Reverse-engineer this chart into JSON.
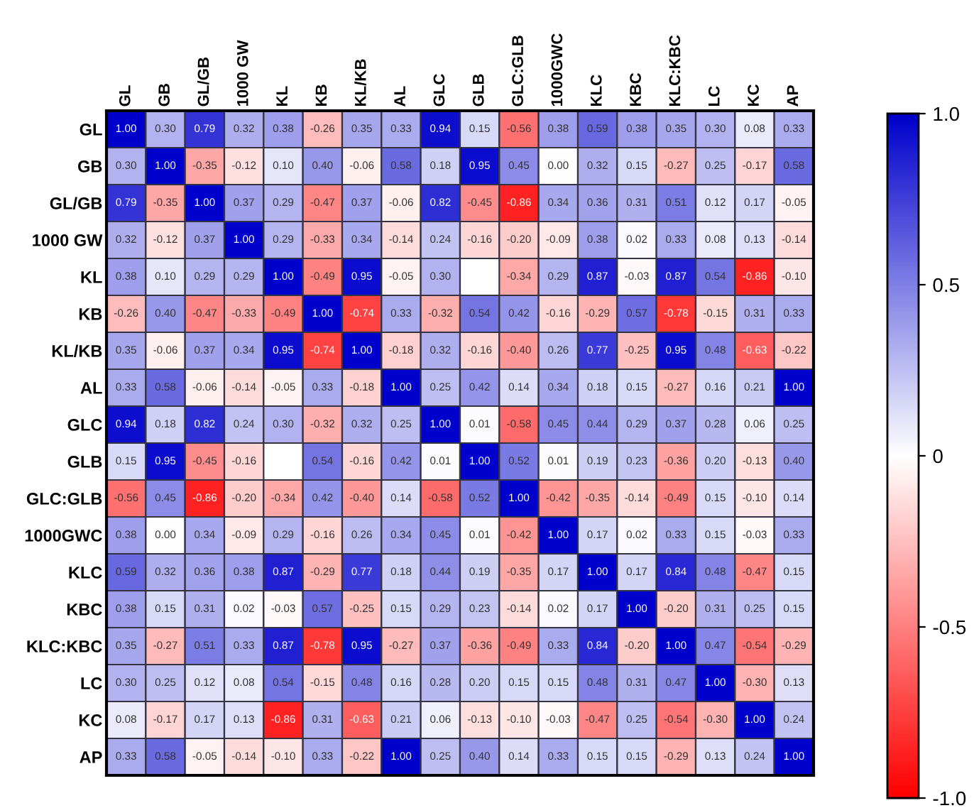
{
  "chart_data": {
    "type": "heatmap",
    "categories": [
      "GL",
      "GB",
      "GL/GB",
      "1000 GW",
      "KL",
      "KB",
      "KL/KB",
      "AL",
      "GLC",
      "GLB",
      "GLC:GLB",
      "1000GWC",
      "KLC",
      "KBC",
      "KLC:KBC",
      "LC",
      "KC",
      "AP"
    ],
    "y_categories": [
      "GL",
      "GB",
      "GL/GB",
      "1000 GW",
      "KL",
      "KB",
      "KL/KB",
      "AL",
      "GLC",
      "GLB",
      "GLC:GLB",
      "1000GWC",
      "KLC",
      "KBC",
      "KLC:KBC",
      "LC",
      "KC",
      "AP"
    ],
    "cells": [
      [
        1.0,
        0.3,
        0.79,
        0.32,
        0.38,
        -0.26,
        0.35,
        0.33,
        0.94,
        0.15,
        -0.56,
        0.38,
        0.59,
        0.38,
        0.35,
        0.3,
        0.08,
        0.33
      ],
      [
        0.3,
        1.0,
        -0.35,
        -0.12,
        0.1,
        0.4,
        -0.06,
        0.58,
        0.18,
        0.95,
        0.45,
        0.0,
        0.32,
        0.15,
        -0.27,
        0.25,
        -0.17,
        0.58
      ],
      [
        0.79,
        -0.35,
        1.0,
        0.37,
        0.29,
        -0.47,
        0.37,
        -0.06,
        0.82,
        -0.45,
        -0.86,
        0.34,
        0.36,
        0.31,
        0.51,
        0.12,
        0.17,
        -0.05
      ],
      [
        0.32,
        -0.12,
        0.37,
        1.0,
        0.29,
        -0.33,
        0.34,
        -0.14,
        0.24,
        -0.16,
        -0.2,
        -0.09,
        0.38,
        0.02,
        0.33,
        0.08,
        0.13,
        -0.14
      ],
      [
        0.38,
        0.1,
        0.29,
        0.29,
        1.0,
        -0.49,
        0.95,
        -0.05,
        0.3,
        null,
        -0.34,
        0.29,
        0.87,
        -0.03,
        0.87,
        0.54,
        -0.86,
        -0.1
      ],
      [
        -0.26,
        0.4,
        -0.47,
        -0.33,
        -0.49,
        1.0,
        -0.74,
        0.33,
        -0.32,
        0.54,
        0.42,
        -0.16,
        -0.29,
        0.57,
        -0.78,
        -0.15,
        0.31,
        0.33
      ],
      [
        0.35,
        -0.06,
        0.37,
        0.34,
        0.95,
        -0.74,
        1.0,
        -0.18,
        0.32,
        -0.16,
        -0.4,
        0.26,
        0.77,
        -0.25,
        0.95,
        0.48,
        -0.63,
        -0.22
      ],
      [
        0.33,
        0.58,
        -0.06,
        -0.14,
        -0.05,
        0.33,
        -0.18,
        1.0,
        0.25,
        0.42,
        0.14,
        0.34,
        0.18,
        0.15,
        -0.27,
        0.16,
        0.21,
        1.0
      ],
      [
        0.94,
        0.18,
        0.82,
        0.24,
        0.3,
        -0.32,
        0.32,
        0.25,
        1.0,
        0.01,
        -0.58,
        0.45,
        0.44,
        0.29,
        0.37,
        0.28,
        0.06,
        0.25
      ],
      [
        0.15,
        0.95,
        -0.45,
        -0.16,
        null,
        0.54,
        -0.16,
        0.42,
        0.01,
        1.0,
        0.52,
        0.01,
        0.19,
        0.23,
        -0.36,
        0.2,
        -0.13,
        0.4
      ],
      [
        -0.56,
        0.45,
        -0.86,
        -0.2,
        -0.34,
        0.42,
        -0.4,
        0.14,
        -0.58,
        0.52,
        1.0,
        -0.42,
        -0.35,
        -0.14,
        -0.49,
        0.15,
        -0.1,
        0.14
      ],
      [
        0.38,
        0.0,
        0.34,
        -0.09,
        0.29,
        -0.16,
        0.26,
        0.34,
        0.45,
        0.01,
        -0.42,
        1.0,
        0.17,
        0.02,
        0.33,
        0.15,
        -0.03,
        0.33
      ],
      [
        0.59,
        0.32,
        0.36,
        0.38,
        0.87,
        -0.29,
        0.77,
        0.18,
        0.44,
        0.19,
        -0.35,
        0.17,
        1.0,
        0.17,
        0.84,
        0.48,
        -0.47,
        0.15
      ],
      [
        0.38,
        0.15,
        0.31,
        0.02,
        -0.03,
        0.57,
        -0.25,
        0.15,
        0.29,
        0.23,
        -0.14,
        0.02,
        0.17,
        1.0,
        -0.2,
        0.31,
        0.25,
        0.15
      ],
      [
        0.35,
        -0.27,
        0.51,
        0.33,
        0.87,
        -0.78,
        0.95,
        -0.27,
        0.37,
        -0.36,
        -0.49,
        0.33,
        0.84,
        -0.2,
        1.0,
        0.47,
        -0.54,
        -0.29
      ],
      [
        0.3,
        0.25,
        0.12,
        0.08,
        0.54,
        -0.15,
        0.48,
        0.16,
        0.28,
        0.2,
        0.15,
        0.15,
        0.48,
        0.31,
        0.47,
        1.0,
        -0.3,
        0.13
      ],
      [
        0.08,
        -0.17,
        0.17,
        0.13,
        -0.86,
        0.31,
        -0.63,
        0.21,
        0.06,
        -0.13,
        -0.1,
        -0.03,
        -0.47,
        0.25,
        -0.54,
        -0.3,
        1.0,
        0.24
      ],
      [
        0.33,
        0.58,
        -0.05,
        -0.14,
        -0.1,
        0.33,
        -0.22,
        1.0,
        0.25,
        0.4,
        0.14,
        0.33,
        0.15,
        0.15,
        -0.29,
        0.13,
        0.24,
        1.0
      ]
    ],
    "cell_labels": [
      [
        "1.00",
        "0.30",
        "0.79",
        "0.32",
        "0.38",
        "-0.26",
        "0.35",
        "0.33",
        "0.94",
        "0.15",
        "-0.56",
        "0.38",
        "0.59",
        "0.38",
        "0.35",
        "0.30",
        "0.08",
        "0.33"
      ],
      [
        "0.30",
        "1.00",
        "-0.35",
        "-0.12",
        "0.10",
        "0.40",
        "-0.06",
        "0.58",
        "0.18",
        "0.95",
        "0.45",
        "0.00",
        "0.32",
        "0.15",
        "-0.27",
        "0.25",
        "-0.17",
        "0.58"
      ],
      [
        "0.79",
        "-0.35",
        "1.00",
        "0.37",
        "0.29",
        "-0.47",
        "0.37",
        "-0.06",
        "0.82",
        "-0.45",
        "-0.86",
        "0.34",
        "0.36",
        "0.31",
        "0.51",
        "0.12",
        "0.17",
        "-0.05"
      ],
      [
        "0.32",
        "-0.12",
        "0.37",
        "1.00",
        "0.29",
        "-0.33",
        "0.34",
        "-0.14",
        "0.24",
        "-0.16",
        "-0.20",
        "-0.09",
        "0.38",
        "0.02",
        "0.33",
        "0.08",
        "0.13",
        "-0.14"
      ],
      [
        "0.38",
        "0.10",
        "0.29",
        "0.29",
        "1.00",
        "-0.49",
        "0.95",
        "-0.05",
        "0.30",
        null,
        "-0.34",
        "0.29",
        "0.87",
        "-0.03",
        "0.87",
        "0.54",
        "-0.86",
        "-0.10"
      ],
      [
        "-0.26",
        "0.40",
        "-0.47",
        "-0.33",
        "-0.49",
        "1.00",
        "-0.74",
        "0.33",
        "-0.32",
        "0.54",
        "0.42",
        "-0.16",
        "-0.29",
        "0.57",
        "-0.78",
        "-0.15",
        "0.31",
        "0.33"
      ],
      [
        "0.35",
        "-0.06",
        "0.37",
        "0.34",
        "0.95",
        "-0.74",
        "1.00",
        "-0.18",
        "0.32",
        "-0.16",
        "-0.40",
        "0.26",
        "0.77",
        "-0.25",
        "0.95",
        "0.48",
        "-0.63",
        "-0.22"
      ],
      [
        "0.33",
        "0.58",
        "-0.06",
        "-0.14",
        "-0.05",
        "0.33",
        "-0.18",
        "1.00",
        "0.25",
        "0.42",
        "0.14",
        "0.34",
        "0.18",
        "0.15",
        "-0.27",
        "0.16",
        "0.21",
        "1.00"
      ],
      [
        "0.94",
        "0.18",
        "0.82",
        "0.24",
        "0.30",
        "-0.32",
        "0.32",
        "0.25",
        "1.00",
        "0.01",
        "-0.58",
        "0.45",
        "0.44",
        "0.29",
        "0.37",
        "0.28",
        "0.06",
        "0.25"
      ],
      [
        "0.15",
        "0.95",
        "-0.45",
        "-0.16",
        null,
        "0.54",
        "-0.16",
        "0.42",
        "0.01",
        "1.00",
        "0.52",
        "0.01",
        "0.19",
        "0.23",
        "-0.36",
        "0.20",
        "-0.13",
        "0.40"
      ],
      [
        "-0.56",
        "0.45",
        "-0.86",
        "-0.20",
        "-0.34",
        "0.42",
        "-0.40",
        "0.14",
        "-0.58",
        "0.52",
        "1.00",
        "-0.42",
        "-0.35",
        "-0.14",
        "-0.49",
        "0.15",
        "-0.10",
        "0.14"
      ],
      [
        "0.38",
        "0.00",
        "0.34",
        "-0.09",
        "0.29",
        "-0.16",
        "0.26",
        "0.34",
        "0.45",
        "0.01",
        "-0.42",
        "1.00",
        "0.17",
        "0.02",
        "0.33",
        "0.15",
        "-0.03",
        "0.33"
      ],
      [
        "0.59",
        "0.32",
        "0.36",
        "0.38",
        "0.87",
        "-0.29",
        "0.77",
        "0.18",
        "0.44",
        "0.19",
        "-0.35",
        "0.17",
        "1.00",
        "0.17",
        "0.84",
        "0.48",
        "-0.47",
        "0.15"
      ],
      [
        "0.38",
        "0.15",
        "0.31",
        "0.02",
        "-0.03",
        "0.57",
        "-0.25",
        "0.15",
        "0.29",
        "0.23",
        "-0.14",
        "0.02",
        "0.17",
        "1.00",
        "-0.20",
        "0.31",
        "0.25",
        "0.15"
      ],
      [
        "0.35",
        "-0.27",
        "0.51",
        "0.33",
        "0.87",
        "-0.78",
        "0.95",
        "-0.27",
        "0.37",
        "-0.36",
        "-0.49",
        "0.33",
        "0.84",
        "-0.20",
        "1.00",
        "0.47",
        "-0.54",
        "-0.29"
      ],
      [
        "0.30",
        "0.25",
        "0.12",
        "0.08",
        "0.54",
        "-0.15",
        "0.48",
        "0.16",
        "0.28",
        "0.20",
        "0.15",
        "0.15",
        "0.48",
        "0.31",
        "0.47",
        "1.00",
        "-0.30",
        "0.13"
      ],
      [
        "0.08",
        "-0.17",
        "0.17",
        "0.13",
        "-0.86",
        "0.31",
        "-0.63",
        "0.21",
        "0.06",
        "-0.13",
        "-0.10",
        "-0.03",
        "-0.47",
        "0.25",
        "-0.54",
        "-0.30",
        "1.00",
        "0.24"
      ],
      [
        "0.33",
        "0.58",
        "-0.05",
        "-0.14",
        "-0.10",
        "0.33",
        "-0.22",
        "1.00",
        "0.25",
        "0.40",
        "0.14",
        "0.33",
        "0.15",
        "0.15",
        "-0.29",
        "0.13",
        "0.24",
        "1.00"
      ]
    ],
    "colors": [
      "#ff0000",
      "#ffffff",
      "#0000cc"
    ],
    "clim": [
      -1.0,
      1.0
    ],
    "cticks": [
      {
        "value": -1.0,
        "label": "-1.0"
      },
      {
        "value": -0.5,
        "label": "-0.5"
      },
      0,
      {
        "value": 0.5,
        "label": "0.5"
      },
      {
        "value": 1.0,
        "label": "1.0"
      }
    ]
  }
}
